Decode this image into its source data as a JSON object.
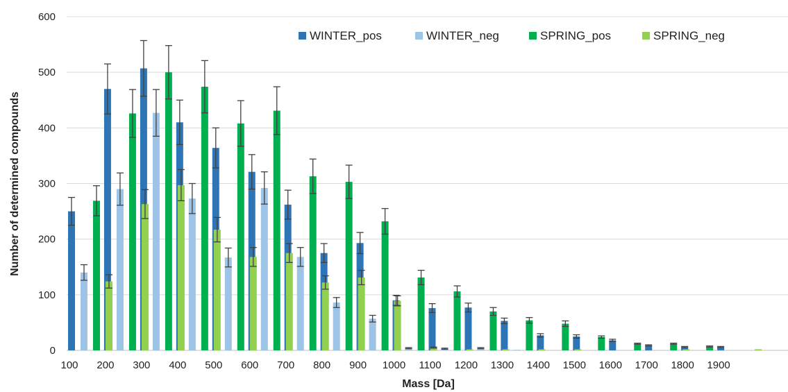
{
  "chart_data": {
    "type": "bar",
    "xlabel": "Mass [Da]",
    "ylabel": "Number of determined compounds",
    "ylim": [
      0,
      600
    ],
    "yticks": [
      0,
      100,
      200,
      300,
      400,
      500,
      600
    ],
    "grid": "horizontal",
    "legend_position": "top-right",
    "categories": [
      "100",
      "200",
      "300",
      "400",
      "500",
      "600",
      "700",
      "800",
      "900",
      "1000",
      "1100",
      "1200",
      "1300",
      "1400",
      "1500",
      "1600",
      "1700",
      "1800",
      "1900"
    ],
    "series": [
      {
        "name": "WINTER_pos",
        "color": "#2e75b6",
        "values": [
          250,
          470,
          507,
          410,
          364,
          321,
          262,
          175,
          193,
          90,
          76,
          77,
          53,
          27,
          25,
          18,
          9,
          6,
          6
        ],
        "errors": [
          25,
          45,
          50,
          40,
          36,
          31,
          26,
          17,
          19,
          9,
          8,
          8,
          5,
          3,
          3,
          2,
          1,
          1,
          1
        ]
      },
      {
        "name": "WINTER_neg",
        "color": "#9dc3e6",
        "values": [
          140,
          290,
          427,
          273,
          167,
          292,
          168,
          86,
          57,
          4,
          3,
          4,
          1,
          0,
          0,
          0,
          0,
          0,
          0
        ],
        "errors": [
          14,
          29,
          42,
          27,
          17,
          29,
          17,
          9,
          6,
          1,
          1,
          1,
          0,
          0,
          0,
          0,
          0,
          0,
          0
        ]
      },
      {
        "name": "SPRING_pos",
        "color": "#00b050",
        "values": [
          269,
          426,
          500,
          474,
          408,
          431,
          313,
          303,
          232,
          131,
          106,
          70,
          54,
          48,
          24,
          12,
          12,
          7,
          0
        ],
        "errors": [
          27,
          43,
          48,
          47,
          41,
          43,
          31,
          30,
          23,
          13,
          10,
          7,
          5,
          5,
          2,
          1,
          1,
          1,
          0
        ]
      },
      {
        "name": "SPRING_neg",
        "color": "#92d050",
        "values": [
          124,
          263,
          297,
          217,
          168,
          175,
          122,
          131,
          89,
          5,
          2,
          2,
          2,
          2,
          0,
          0,
          2,
          0,
          2
        ],
        "errors": [
          12,
          26,
          28,
          22,
          17,
          17,
          12,
          13,
          9,
          1,
          0,
          0,
          0,
          0,
          0,
          0,
          0,
          0,
          0
        ]
      }
    ]
  }
}
